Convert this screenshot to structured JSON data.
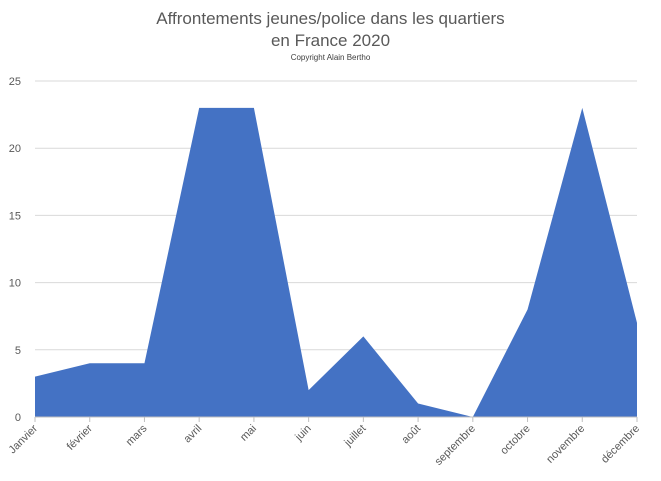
{
  "chart_data": {
    "type": "area",
    "title_line1": "Affrontements jeunes/police dans les quartiers",
    "title_line2": "en France 2020",
    "subtitle": "Copyright Alain Bertho",
    "categories": [
      "Janvier",
      "février",
      "mars",
      "avril",
      "mai",
      "juin",
      "juillet",
      "août",
      "septembre",
      "octobre",
      "novembre",
      "décembre"
    ],
    "values": [
      3,
      4,
      4,
      23,
      23,
      2,
      6,
      1,
      0,
      8,
      23,
      7
    ],
    "ylim": [
      0,
      25
    ],
    "yticks": [
      0,
      5,
      10,
      15,
      20,
      25
    ],
    "grid": true,
    "series_color": "#4472C4",
    "grid_color": "#D9D9D9",
    "axis_color": "#BFBFBF"
  }
}
